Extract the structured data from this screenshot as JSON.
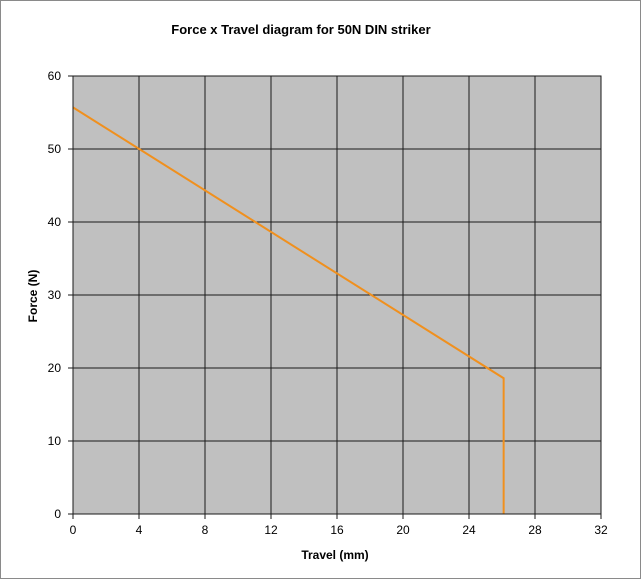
{
  "chart_data": {
    "type": "line",
    "title": "Force x Travel diagram for 50N DIN striker",
    "xlabel": "Travel (mm)",
    "ylabel": "Force (N)",
    "xlim": [
      0,
      32
    ],
    "ylim": [
      0,
      60
    ],
    "xticks": [
      0,
      4,
      8,
      12,
      16,
      20,
      24,
      28,
      32
    ],
    "yticks": [
      0,
      10,
      20,
      30,
      40,
      50,
      60
    ],
    "grid": true,
    "legend": "none",
    "plot_background": "#c0c0c0",
    "gridline_color": "#1a1a1a",
    "series": [
      {
        "color": "#f0901e",
        "x": [
          0,
          26.1,
          26.1
        ],
        "y": [
          55.7,
          18.6,
          0
        ]
      }
    ]
  }
}
